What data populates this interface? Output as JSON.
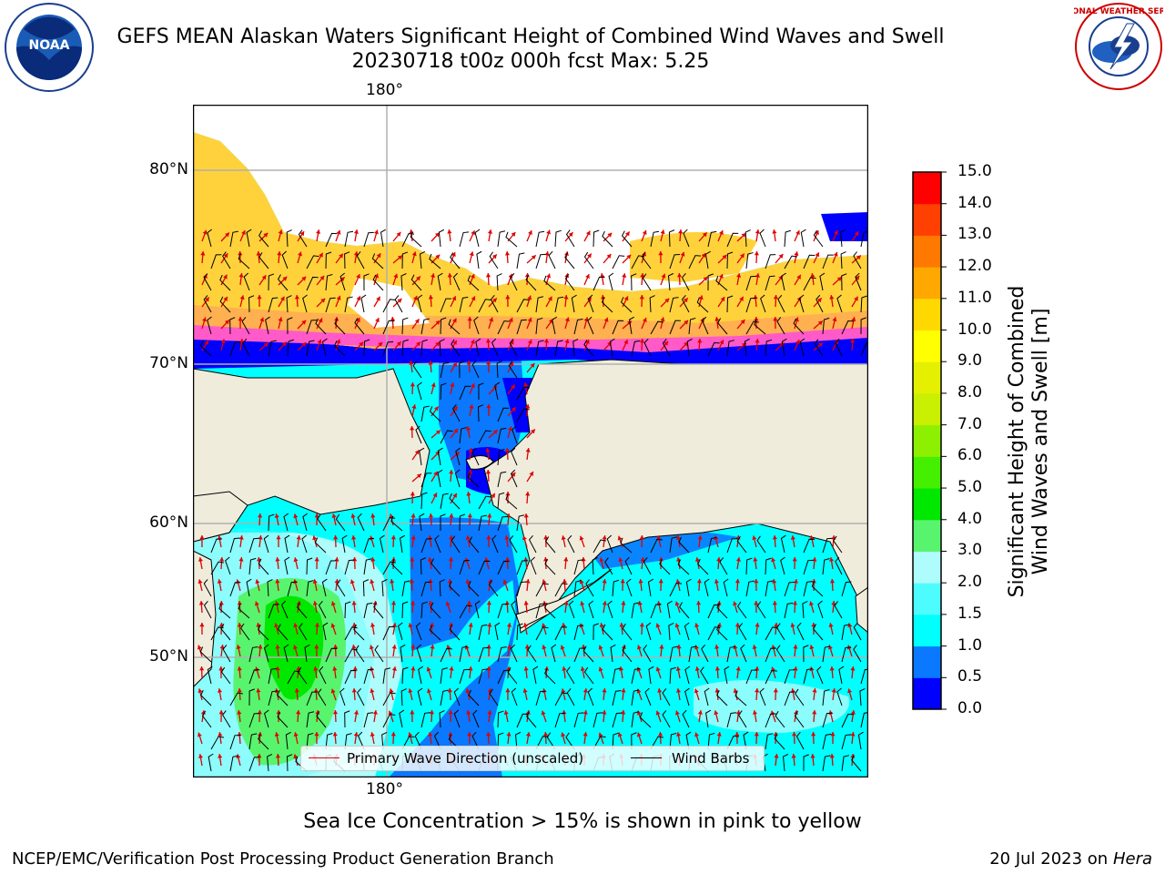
{
  "title": {
    "line1": "GEFS MEAN Alaskan Waters Significant Height of Combined Wind Waves and Swell",
    "line2": "20230718 t00z 000h fcst   Max: 5.25"
  },
  "map": {
    "lat_labels": [
      "80°N",
      "70°N",
      "60°N",
      "50°N"
    ],
    "lon_label_top": "180°",
    "lon_label_bottom": "180°",
    "colors": {
      "land": "#efecdc",
      "ice_white": "#ffffff",
      "ice_yellow": "#ffd23c",
      "ice_orange": "#ffb050",
      "ice_pink": "#ff5ac8",
      "ice_magenta": "#ff2ee0",
      "wave_0_0.5": "#0000ff",
      "wave_0.5_1.0": "#0a78ff",
      "wave_1.0_1.5": "#00ffff",
      "wave_1.5_2.0": "#4cfcff",
      "wave_2.0_3.0": "#aefcfc",
      "wave_3.0_4.0": "#58f46e",
      "wave_4.0_5.0": "#00e800",
      "wave_dir": "#e00000",
      "wind_barb": "#000000",
      "grid": "#b0b0b0"
    },
    "legend": {
      "wave_direction": "Primary Wave Direction (unscaled)",
      "wind_barbs": "Wind Barbs"
    }
  },
  "colorbar": {
    "label_line1": "Significant Height of Combined",
    "label_line2": "Wind Waves and Swell [m]",
    "ticks": [
      "0.0",
      "0.5",
      "1.0",
      "1.5",
      "2.0",
      "3.0",
      "4.0",
      "5.0",
      "6.0",
      "7.0",
      "8.0",
      "9.0",
      "10.0",
      "11.0",
      "12.0",
      "13.0",
      "14.0",
      "15.0"
    ],
    "colors": [
      "#0000ff",
      "#0a78ff",
      "#00ffff",
      "#4cfcff",
      "#aefcfc",
      "#58f46e",
      "#00e800",
      "#44f000",
      "#8cf000",
      "#c8f000",
      "#e4f000",
      "#ffff00",
      "#ffd800",
      "#ffa800",
      "#ff7800",
      "#ff4000",
      "#ff0000"
    ]
  },
  "sea_ice_note": "Sea Ice Concentration > 15% is shown in pink to yellow",
  "footer": {
    "left": "NCEP/EMC/Verification Post Processing Product Generation Branch",
    "date": "20 Jul 2023 on ",
    "machine": "Hera"
  },
  "logos": {
    "noaa_text": "NOAA",
    "nws_text": "NATIONAL WEATHER SERVICE"
  }
}
